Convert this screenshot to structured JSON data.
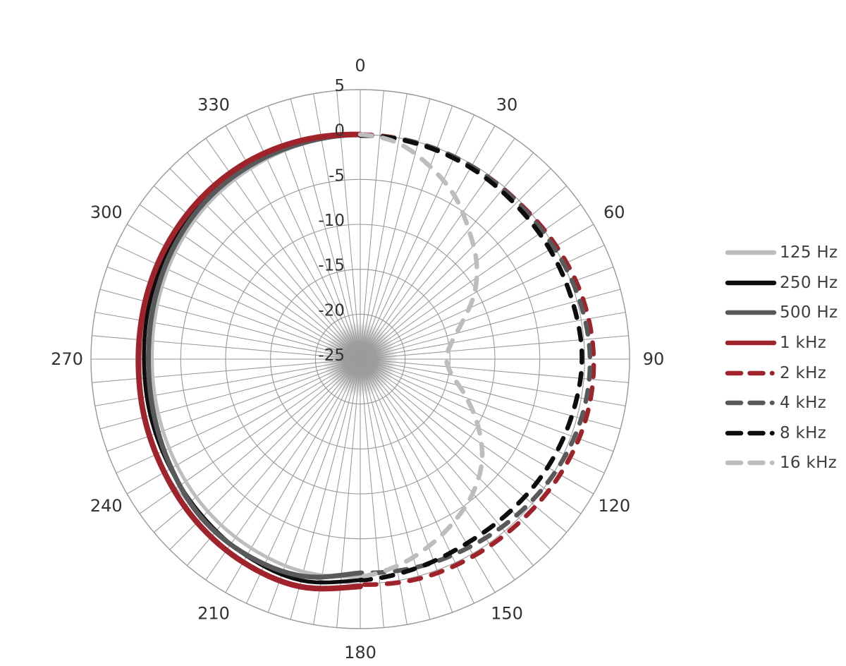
{
  "chart_data": {
    "type": "line",
    "subtype": "polar-frequency-response",
    "title": "",
    "units": "dB",
    "legend_position": "right",
    "angle_grid_step_deg": 5,
    "angle_ticks_deg": [
      0,
      30,
      60,
      90,
      120,
      150,
      180,
      210,
      240,
      270,
      300,
      330
    ],
    "radial_ticks_db": [
      5,
      0,
      -5,
      -10,
      -15,
      -20,
      -25
    ],
    "r_range_db": [
      -25,
      5
    ],
    "grid": "on",
    "colors": {
      "grid": "#97989a",
      "center_hub": "#9b9b9d",
      "tick_label": "#323235",
      "legend_text": "#3e3e40",
      "red": "#a0222a",
      "black": "#0d0d0d",
      "dark_gray": "#58595b",
      "light_gray": "#bcbdbf"
    },
    "series": [
      {
        "name": "125 Hz",
        "color": "#bcbdbf",
        "style": "solid",
        "width": 5,
        "half": "left",
        "points_deg_db": [
          [
            180,
            -0.8
          ],
          [
            195,
            -0.5
          ],
          [
            210,
            -0.7
          ],
          [
            225,
            -1.0
          ],
          [
            240,
            -1.4
          ],
          [
            255,
            -1.7
          ],
          [
            270,
            -1.8
          ],
          [
            285,
            -1.6
          ],
          [
            300,
            -1.2
          ],
          [
            315,
            -0.8
          ],
          [
            330,
            -0.5
          ],
          [
            345,
            -0.2
          ],
          [
            360,
            0
          ]
        ]
      },
      {
        "name": "250 Hz",
        "color": "#0d0d0d",
        "style": "solid",
        "width": 5.5,
        "half": "left",
        "points_deg_db": [
          [
            180,
            -0.4
          ],
          [
            195,
            0.5
          ],
          [
            210,
            0.3
          ],
          [
            225,
            -0.2
          ],
          [
            240,
            -0.6
          ],
          [
            255,
            -0.8
          ],
          [
            270,
            -0.9
          ],
          [
            285,
            -0.7
          ],
          [
            300,
            -0.4
          ],
          [
            315,
            -0.2
          ],
          [
            330,
            -0.1
          ],
          [
            345,
            -0.1
          ],
          [
            360,
            0
          ]
        ]
      },
      {
        "name": "500 Hz",
        "color": "#58595b",
        "style": "solid",
        "width": 7,
        "half": "left",
        "points_deg_db": [
          [
            180,
            -1.2
          ],
          [
            195,
            0.0
          ],
          [
            210,
            0.2
          ],
          [
            225,
            0.0
          ],
          [
            240,
            -0.7
          ],
          [
            255,
            -1.2
          ],
          [
            270,
            -1.4
          ],
          [
            285,
            -1.2
          ],
          [
            300,
            -0.8
          ],
          [
            315,
            -0.4
          ],
          [
            330,
            -0.2
          ],
          [
            345,
            -0.1
          ],
          [
            360,
            0
          ]
        ]
      },
      {
        "name": "1 kHz",
        "color": "#a0222a",
        "style": "solid",
        "width": 8,
        "half": "left",
        "points_deg_db": [
          [
            180,
            0.3
          ],
          [
            195,
            1.2
          ],
          [
            210,
            1.1
          ],
          [
            225,
            0.7
          ],
          [
            240,
            0.2
          ],
          [
            255,
            -0.1
          ],
          [
            270,
            -0.3
          ],
          [
            285,
            -0.2
          ],
          [
            300,
            0.0
          ],
          [
            315,
            0.2
          ],
          [
            330,
            0.3
          ],
          [
            345,
            0.2
          ],
          [
            360,
            0
          ]
        ]
      },
      {
        "name": "2 kHz",
        "color": "#a0222a",
        "style": "dashed",
        "width": 6.5,
        "half": "right",
        "points_deg_db": [
          [
            0,
            0
          ],
          [
            15,
            -0.1
          ],
          [
            30,
            -0.2
          ],
          [
            45,
            -0.2
          ],
          [
            60,
            0.2
          ],
          [
            75,
            0.7
          ],
          [
            90,
            1.0
          ],
          [
            105,
            1.0
          ],
          [
            120,
            0.7
          ],
          [
            135,
            0.4
          ],
          [
            150,
            0.3
          ],
          [
            165,
            0.3
          ],
          [
            180,
            0.1
          ]
        ]
      },
      {
        "name": "4 kHz",
        "color": "#58595b",
        "style": "dashed",
        "width": 6.5,
        "half": "right",
        "points_deg_db": [
          [
            0,
            -0.1
          ],
          [
            15,
            -0.1
          ],
          [
            30,
            -0.2
          ],
          [
            45,
            -0.3
          ],
          [
            60,
            -0.1
          ],
          [
            75,
            0.3
          ],
          [
            90,
            0.6
          ],
          [
            105,
            0.5
          ],
          [
            120,
            0.1
          ],
          [
            135,
            -0.4
          ],
          [
            150,
            -0.8
          ],
          [
            165,
            -1.0
          ],
          [
            180,
            -1.2
          ]
        ]
      },
      {
        "name": "8 kHz",
        "color": "#0d0d0d",
        "style": "dashed",
        "width": 6.5,
        "half": "right",
        "points_deg_db": [
          [
            0,
            -0.1
          ],
          [
            15,
            -0.2
          ],
          [
            30,
            -0.4
          ],
          [
            45,
            -0.6
          ],
          [
            60,
            -0.6
          ],
          [
            75,
            -0.5
          ],
          [
            90,
            -0.3
          ],
          [
            105,
            -0.6
          ],
          [
            120,
            -0.9
          ],
          [
            135,
            -1.2
          ],
          [
            150,
            -1.3
          ],
          [
            165,
            -0.9
          ],
          [
            180,
            -0.4
          ]
        ]
      },
      {
        "name": "16 kHz",
        "color": "#bcbdbf",
        "style": "dashed",
        "width": 6.5,
        "half": "right",
        "points_deg_db": [
          [
            0,
            0
          ],
          [
            10,
            -0.6
          ],
          [
            20,
            -2.2
          ],
          [
            30,
            -4.0
          ],
          [
            40,
            -6.2
          ],
          [
            50,
            -8.1
          ],
          [
            60,
            -10.3
          ],
          [
            70,
            -12.9
          ],
          [
            80,
            -14.7
          ],
          [
            90,
            -15.4
          ],
          [
            100,
            -14.6
          ],
          [
            110,
            -12.4
          ],
          [
            120,
            -9.8
          ],
          [
            130,
            -7.3
          ],
          [
            140,
            -5.5
          ],
          [
            150,
            -4.1
          ],
          [
            160,
            -2.8
          ],
          [
            170,
            -1.6
          ],
          [
            180,
            -0.8
          ]
        ]
      }
    ]
  }
}
